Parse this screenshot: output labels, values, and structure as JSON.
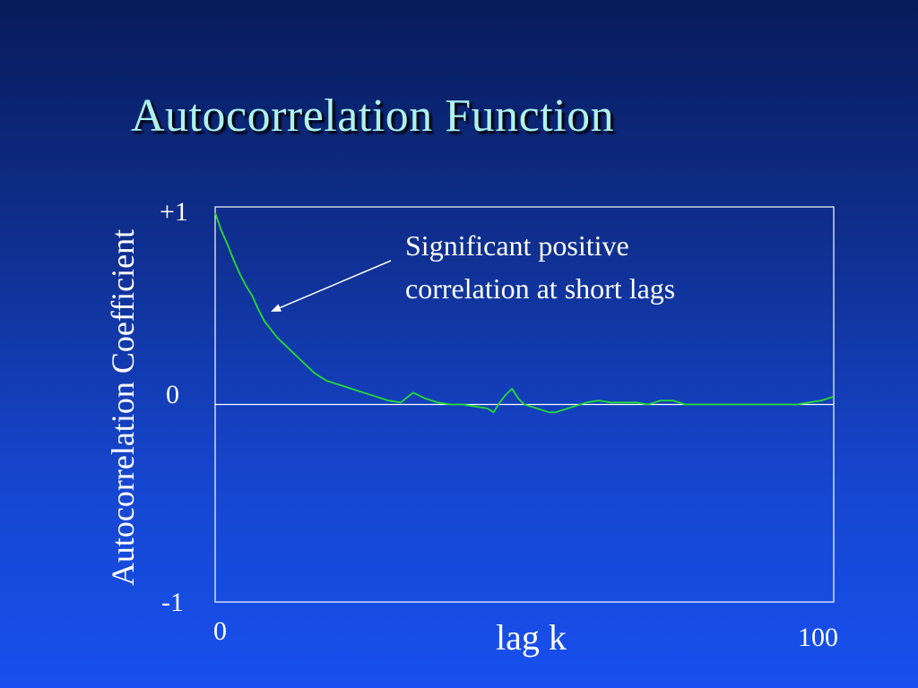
{
  "slide": {
    "title": "Autocorrelation Function"
  },
  "chart_data": {
    "type": "line",
    "title": "Autocorrelation Function",
    "xlabel": "lag k",
    "ylabel": "Autocorrelation Coefficient",
    "xlim": [
      0,
      100
    ],
    "ylim": [
      -1,
      1
    ],
    "x_tick_labels": [
      "0",
      "100"
    ],
    "y_tick_labels": [
      "+1",
      "0",
      "-1"
    ],
    "grid": false,
    "annotation": {
      "lines": [
        "Significant positive",
        "correlation at short lags"
      ],
      "arrow_points_to": {
        "x": 9,
        "y": 0.47
      }
    },
    "series": [
      {
        "color": "#22dd33",
        "x": [
          0,
          1,
          2,
          3,
          4,
          5,
          6,
          7,
          8,
          9,
          10,
          11,
          12,
          13,
          14,
          15,
          16,
          17,
          18,
          19,
          20,
          22,
          24,
          26,
          28,
          30,
          32,
          34,
          36,
          38,
          40,
          42,
          44,
          45,
          46,
          47,
          48,
          49,
          50,
          51,
          52,
          53,
          54,
          55,
          56,
          58,
          60,
          62,
          64,
          66,
          68,
          70,
          72,
          74,
          76,
          78,
          80,
          82,
          84,
          86,
          88,
          90,
          92,
          94,
          96,
          98,
          100
        ],
        "y": [
          0.97,
          0.88,
          0.81,
          0.73,
          0.66,
          0.6,
          0.55,
          0.48,
          0.42,
          0.38,
          0.34,
          0.31,
          0.28,
          0.25,
          0.22,
          0.19,
          0.16,
          0.14,
          0.12,
          0.11,
          0.1,
          0.08,
          0.06,
          0.04,
          0.02,
          0.01,
          0.06,
          0.03,
          0.01,
          0.0,
          0.0,
          -0.01,
          -0.02,
          -0.04,
          0.01,
          0.05,
          0.08,
          0.03,
          0.0,
          -0.01,
          -0.02,
          -0.03,
          -0.04,
          -0.04,
          -0.03,
          -0.01,
          0.01,
          0.02,
          0.01,
          0.01,
          0.01,
          0.0,
          0.02,
          0.02,
          0.0,
          0.0,
          0.0,
          0.0,
          0.0,
          0.0,
          0.0,
          0.0,
          0.0,
          0.0,
          0.01,
          0.02,
          0.04
        ]
      }
    ]
  }
}
